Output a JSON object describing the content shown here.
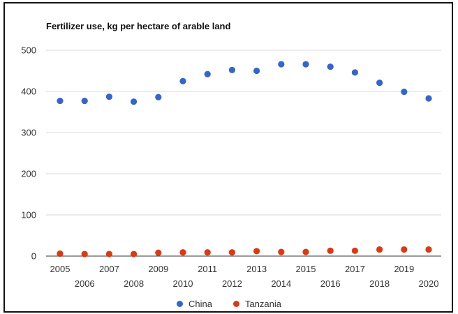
{
  "chart_data": {
    "type": "scatter",
    "title": "Fertilizer use, kg per hectare of arable land",
    "xlabel": "",
    "ylabel": "",
    "x": [
      2005,
      2006,
      2007,
      2008,
      2009,
      2010,
      2011,
      2012,
      2013,
      2014,
      2015,
      2016,
      2017,
      2018,
      2019,
      2020
    ],
    "xticks": [
      "2005",
      "2006",
      "2007",
      "2008",
      "2009",
      "2010",
      "2011",
      "2012",
      "2013",
      "2014",
      "2015",
      "2016",
      "2017",
      "2018",
      "2019",
      "2020"
    ],
    "yticks": [
      "0",
      "100",
      "200",
      "300",
      "400",
      "500"
    ],
    "ylim": [
      0,
      500
    ],
    "grid": true,
    "legend_position": "bottom",
    "series": [
      {
        "name": "China",
        "color": "#3366cc",
        "values": [
          377,
          377,
          387,
          375,
          386,
          425,
          442,
          452,
          450,
          466,
          466,
          460,
          446,
          421,
          399,
          383
        ]
      },
      {
        "name": "Tanzania",
        "color": "#dc3912",
        "values": [
          6,
          5,
          5,
          5,
          8,
          9,
          9,
          9,
          12,
          10,
          10,
          13,
          13,
          16,
          16,
          16
        ]
      }
    ]
  }
}
